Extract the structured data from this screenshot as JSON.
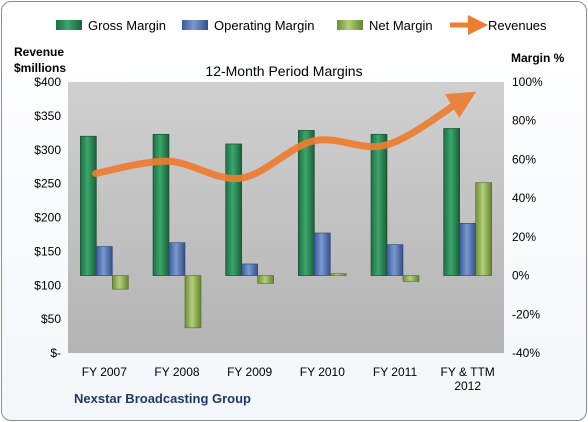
{
  "chart_data": {
    "type": "bar",
    "title": "12-Month Period Margins",
    "company": "Nexstar Broadcasting Group",
    "categories": [
      "FY 2007",
      "FY 2008",
      "FY 2009",
      "FY 2010",
      "FY 2011",
      "FY & TTM\n2012"
    ],
    "y_left_label": "Revenue\n$millions",
    "y_right_label": "Margin %",
    "y_left_ticks": [
      "$400",
      "$350",
      "$300",
      "$250",
      "$200",
      "$150",
      "$100",
      "$50",
      "$-"
    ],
    "y_right_ticks": [
      "100%",
      "80%",
      "60%",
      "40%",
      "20%",
      "0%",
      "-20%",
      "-40%"
    ],
    "y_left_range": [
      0,
      400
    ],
    "y_right_range": [
      -40,
      100
    ],
    "grid": false,
    "legend_position": "top",
    "series": [
      {
        "name": "Gross Margin",
        "kind": "bar",
        "axis": "right",
        "color": "#2e8b57",
        "values": [
          72,
          73,
          68,
          75,
          73,
          76
        ]
      },
      {
        "name": "Operating Margin",
        "kind": "bar",
        "axis": "right",
        "color": "#4f6fb0",
        "values": [
          15,
          17,
          6,
          22,
          16,
          27
        ]
      },
      {
        "name": "Net Margin",
        "kind": "bar",
        "axis": "right",
        "color": "#8fb050",
        "values": [
          -7,
          -27,
          -4,
          1,
          -3,
          48
        ]
      },
      {
        "name": "Revenues",
        "kind": "line",
        "axis": "left",
        "color": "#ed7d31",
        "values": [
          265,
          283,
          258,
          313,
          307,
          373
        ]
      }
    ],
    "colors": {
      "plot_area": "#bfbfbf",
      "frame_border": "#8c8c8c"
    }
  }
}
